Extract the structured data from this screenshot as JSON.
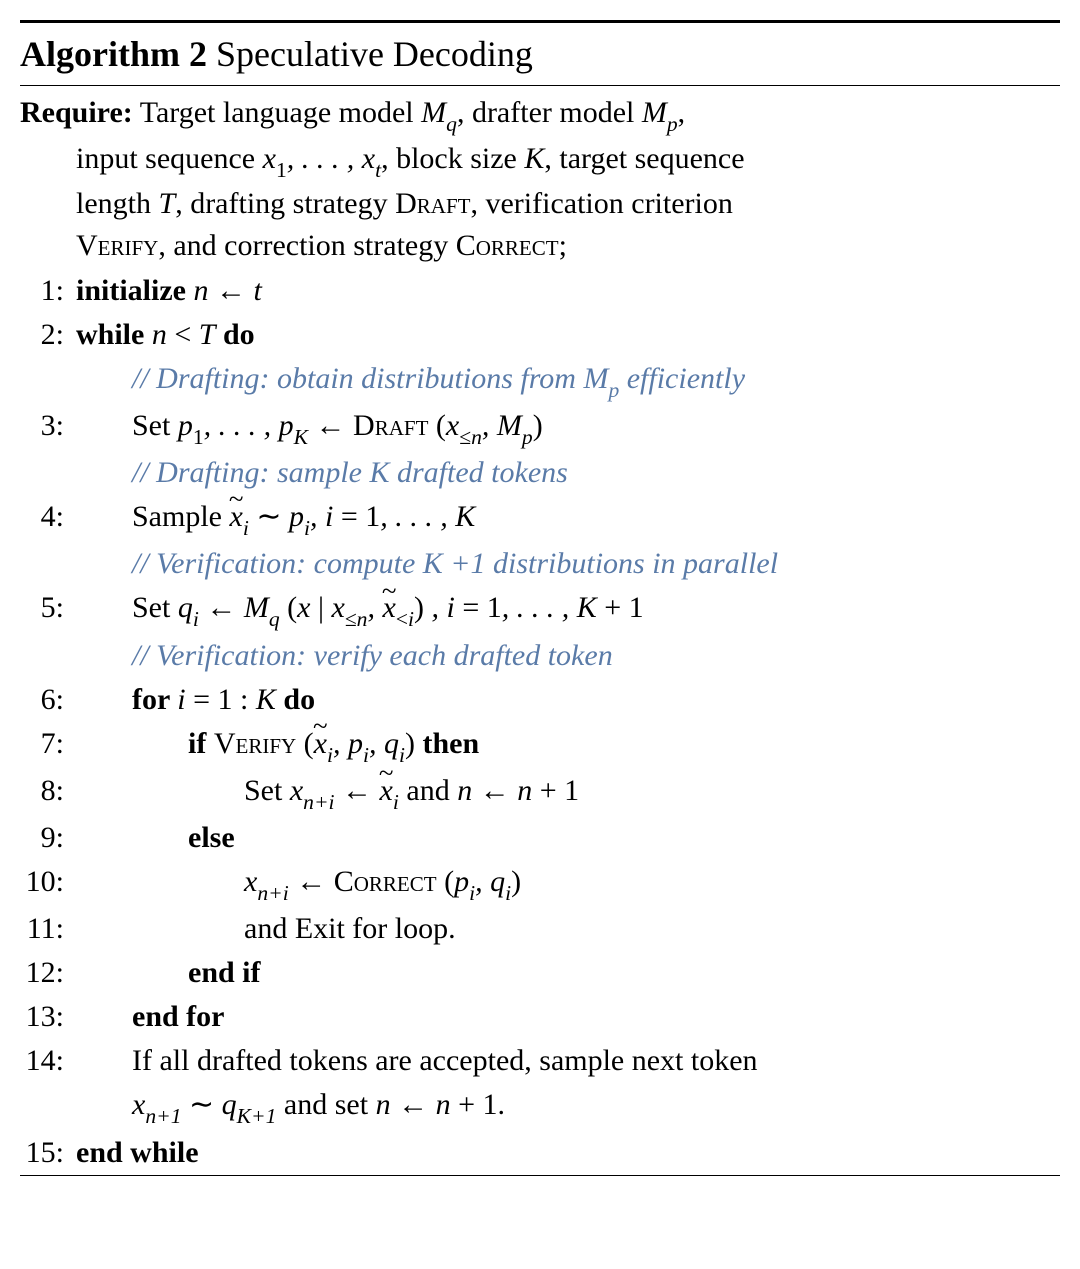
{
  "colors": {
    "text": "#000000",
    "comment": "#5a7ba8",
    "background": "#ffffff",
    "rule": "#000000"
  },
  "typography": {
    "body_fontsize": 30,
    "title_fontsize": 36,
    "font_family": "Times New Roman"
  },
  "title": {
    "label": "Algorithm 2",
    "name": "Speculative Decoding"
  },
  "require": {
    "label": "Require:",
    "line1_a": " Target language model ",
    "model_q": "M",
    "model_q_sub": "q",
    "line1_b": ", drafter model ",
    "model_p": "M",
    "model_p_sub": "p",
    "line1_c": ",",
    "line2_a": "input sequence ",
    "seq": "x",
    "seq_sub1": "1",
    "seq_dots": ", . . . , ",
    "seq_sub2": "t",
    "line2_b": ", block size ",
    "K": "K",
    "line2_c": ", target sequence",
    "line3_a": "length ",
    "T": "T",
    "line3_b": ", drafting strategy ",
    "draft_sc": "Draft",
    "line3_c": ", verification criterion",
    "line4_a": "",
    "verify_sc": "Verify",
    "line4_b": ", and correction strategy ",
    "correct_sc": "Correct",
    "line4_c": ";"
  },
  "steps": [
    {
      "num": "1:",
      "indent": 1,
      "parts": [
        {
          "t": "bold",
          "v": "initialize "
        },
        {
          "t": "ital",
          "v": "n"
        },
        {
          "t": "plain",
          "v": " ← "
        },
        {
          "t": "ital",
          "v": "t"
        }
      ]
    },
    {
      "num": "2:",
      "indent": 1,
      "parts": [
        {
          "t": "bold",
          "v": "while "
        },
        {
          "t": "ital",
          "v": "n"
        },
        {
          "t": "plain",
          "v": " < "
        },
        {
          "t": "ital",
          "v": "T"
        },
        {
          "t": "bold",
          "v": " do"
        }
      ]
    },
    {
      "num": "",
      "indent": 2,
      "comment": true,
      "parts": [
        {
          "t": "plain",
          "v": "// Drafting: obtain distributions from "
        },
        {
          "t": "script",
          "v": "M"
        },
        {
          "t": "sub-ital",
          "v": "p"
        },
        {
          "t": "plain",
          "v": " efficiently"
        }
      ]
    },
    {
      "num": "3:",
      "indent": 2,
      "parts": [
        {
          "t": "plain",
          "v": "Set "
        },
        {
          "t": "ital",
          "v": "p"
        },
        {
          "t": "sub",
          "v": "1"
        },
        {
          "t": "ital",
          "v": ", . . . , p"
        },
        {
          "t": "sub-ital",
          "v": "K"
        },
        {
          "t": "plain",
          "v": " ← "
        },
        {
          "t": "sc",
          "v": "Draft"
        },
        {
          "t": "plain",
          "v": " ("
        },
        {
          "t": "ital",
          "v": "x"
        },
        {
          "t": "sub",
          "v": "≤"
        },
        {
          "t": "sub-ital",
          "v": "n"
        },
        {
          "t": "ital",
          "v": ", "
        },
        {
          "t": "script",
          "v": "M"
        },
        {
          "t": "sub-ital",
          "v": "p"
        },
        {
          "t": "plain",
          "v": ")"
        }
      ]
    },
    {
      "num": "",
      "indent": 2,
      "comment": true,
      "parts": [
        {
          "t": "plain",
          "v": "// Drafting: sample K drafted tokens"
        }
      ]
    },
    {
      "num": "4:",
      "indent": 2,
      "parts": [
        {
          "t": "plain",
          "v": "Sample "
        },
        {
          "t": "tilde-ital",
          "v": "x"
        },
        {
          "t": "sub-ital",
          "v": "i"
        },
        {
          "t": "plain",
          "v": " ∼ "
        },
        {
          "t": "ital",
          "v": "p"
        },
        {
          "t": "sub-ital",
          "v": "i"
        },
        {
          "t": "ital",
          "v": ", i"
        },
        {
          "t": "plain",
          "v": " = 1"
        },
        {
          "t": "ital",
          "v": ", . . . , K"
        }
      ]
    },
    {
      "num": "",
      "indent": 2,
      "comment": true,
      "parts": [
        {
          "t": "plain",
          "v": "// Verification: compute K +1 distributions in parallel"
        }
      ]
    },
    {
      "num": "5:",
      "indent": 2,
      "parts": [
        {
          "t": "plain",
          "v": "Set "
        },
        {
          "t": "ital",
          "v": "q"
        },
        {
          "t": "sub-ital",
          "v": "i"
        },
        {
          "t": "plain",
          "v": " ← "
        },
        {
          "t": "script",
          "v": "M"
        },
        {
          "t": "sub-ital",
          "v": "q"
        },
        {
          "t": "plain",
          "v": " ("
        },
        {
          "t": "ital",
          "v": "x"
        },
        {
          "t": "plain",
          "v": " | "
        },
        {
          "t": "ital",
          "v": "x"
        },
        {
          "t": "sub",
          "v": "≤"
        },
        {
          "t": "sub-ital",
          "v": "n"
        },
        {
          "t": "ital",
          "v": ", "
        },
        {
          "t": "tilde-ital",
          "v": "x"
        },
        {
          "t": "sub",
          "v": "<"
        },
        {
          "t": "sub-ital",
          "v": "i"
        },
        {
          "t": "plain",
          "v": ") "
        },
        {
          "t": "ital",
          "v": ", i"
        },
        {
          "t": "plain",
          "v": " = 1"
        },
        {
          "t": "ital",
          "v": ", . . . , K"
        },
        {
          "t": "plain",
          "v": " + 1"
        }
      ]
    },
    {
      "num": "",
      "indent": 2,
      "comment": true,
      "parts": [
        {
          "t": "plain",
          "v": "// Verification: verify each drafted token"
        }
      ]
    },
    {
      "num": "6:",
      "indent": 2,
      "parts": [
        {
          "t": "bold",
          "v": "for "
        },
        {
          "t": "ital",
          "v": "i"
        },
        {
          "t": "plain",
          "v": " = 1 : "
        },
        {
          "t": "ital",
          "v": "K"
        },
        {
          "t": "bold",
          "v": " do"
        }
      ]
    },
    {
      "num": "7:",
      "indent": 3,
      "parts": [
        {
          "t": "bold",
          "v": "if "
        },
        {
          "t": "sc",
          "v": "Verify"
        },
        {
          "t": "plain",
          "v": " ("
        },
        {
          "t": "tilde-ital",
          "v": "x"
        },
        {
          "t": "sub-ital",
          "v": "i"
        },
        {
          "t": "ital",
          "v": ", p"
        },
        {
          "t": "sub-ital",
          "v": "i"
        },
        {
          "t": "ital",
          "v": ", q"
        },
        {
          "t": "sub-ital",
          "v": "i"
        },
        {
          "t": "plain",
          "v": ") "
        },
        {
          "t": "bold",
          "v": "then"
        }
      ]
    },
    {
      "num": "8:",
      "indent": 4,
      "parts": [
        {
          "t": "plain",
          "v": "Set "
        },
        {
          "t": "ital",
          "v": "x"
        },
        {
          "t": "sub-ital",
          "v": "n+i"
        },
        {
          "t": "plain",
          "v": " ← "
        },
        {
          "t": "tilde-ital",
          "v": "x"
        },
        {
          "t": "sub-ital",
          "v": "i"
        },
        {
          "t": "plain",
          "v": " and "
        },
        {
          "t": "ital",
          "v": "n"
        },
        {
          "t": "plain",
          "v": " ← "
        },
        {
          "t": "ital",
          "v": "n"
        },
        {
          "t": "plain",
          "v": " + 1"
        }
      ]
    },
    {
      "num": "9:",
      "indent": 3,
      "parts": [
        {
          "t": "bold",
          "v": "else"
        }
      ]
    },
    {
      "num": "10:",
      "indent": 4,
      "parts": [
        {
          "t": "ital",
          "v": "x"
        },
        {
          "t": "sub-ital",
          "v": "n+i"
        },
        {
          "t": "plain",
          "v": " ← "
        },
        {
          "t": "sc",
          "v": "Correct"
        },
        {
          "t": "plain",
          "v": " ("
        },
        {
          "t": "ital",
          "v": "p"
        },
        {
          "t": "sub-ital",
          "v": "i"
        },
        {
          "t": "ital",
          "v": ", q"
        },
        {
          "t": "sub-ital",
          "v": "i"
        },
        {
          "t": "plain",
          "v": ")"
        }
      ]
    },
    {
      "num": "11:",
      "indent": 4,
      "parts": [
        {
          "t": "plain",
          "v": "and Exit for loop."
        }
      ]
    },
    {
      "num": "12:",
      "indent": 3,
      "parts": [
        {
          "t": "bold",
          "v": "end if"
        }
      ]
    },
    {
      "num": "13:",
      "indent": 2,
      "parts": [
        {
          "t": "bold",
          "v": "end for"
        }
      ]
    },
    {
      "num": "14:",
      "indent": 2,
      "parts": [
        {
          "t": "plain",
          "v": "If all drafted tokens are accepted, sample next token"
        }
      ]
    },
    {
      "num": "",
      "indent": 0,
      "continuation": true,
      "parts": [
        {
          "t": "ital",
          "v": "x"
        },
        {
          "t": "sub-ital",
          "v": "n+1"
        },
        {
          "t": "plain",
          "v": " ∼ "
        },
        {
          "t": "ital",
          "v": "q"
        },
        {
          "t": "sub-ital",
          "v": "K+1"
        },
        {
          "t": "plain",
          "v": " and set "
        },
        {
          "t": "ital",
          "v": "n"
        },
        {
          "t": "plain",
          "v": " ← "
        },
        {
          "t": "ital",
          "v": "n"
        },
        {
          "t": "plain",
          "v": " + 1."
        }
      ]
    },
    {
      "num": "15:",
      "indent": 1,
      "parts": [
        {
          "t": "bold",
          "v": "end while"
        }
      ]
    }
  ]
}
